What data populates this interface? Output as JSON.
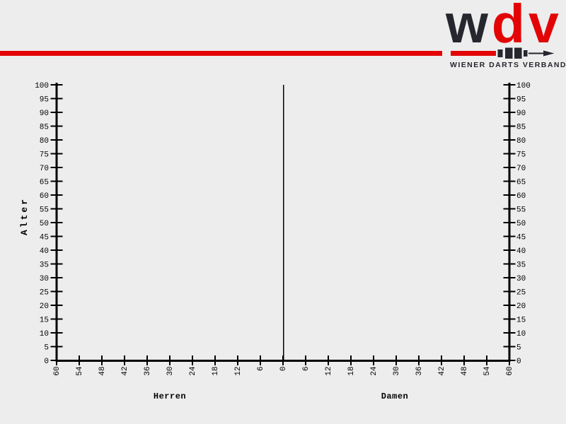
{
  "colors": {
    "red": "#e30505",
    "dark": "#26262e",
    "background": "#ededed",
    "chart": "#000000"
  },
  "header": {
    "logo": {
      "letters": [
        {
          "text": "w",
          "color": "#26262e"
        },
        {
          "text": "d",
          "color": "#e30505"
        },
        {
          "text": "v",
          "color": "#e30505"
        }
      ],
      "tagline": "WIENER DARTS VERBAND"
    }
  },
  "chart_data": {
    "type": "bar",
    "subtype": "population-pyramid",
    "title": "",
    "ylabel": "Alter",
    "grid": false,
    "y_axis": {
      "min": 0,
      "max": 100,
      "step": 5,
      "tick_labels": [
        0,
        5,
        10,
        15,
        20,
        25,
        30,
        35,
        40,
        45,
        50,
        55,
        60,
        65,
        70,
        75,
        80,
        85,
        90,
        95,
        100
      ]
    },
    "x_axis": {
      "max_each_side": 60,
      "step": 6,
      "left_tick_labels": [
        60,
        54,
        48,
        42,
        36,
        30,
        24,
        18,
        12,
        6
      ],
      "center_tick_label": 0,
      "right_tick_labels": [
        6,
        12,
        18,
        24,
        30,
        36,
        42,
        48,
        54,
        60
      ],
      "left_series_label": "Herren",
      "right_series_label": "Damen"
    },
    "series": [
      {
        "name": "Herren",
        "side": "left",
        "values_by_age": []
      },
      {
        "name": "Damen",
        "side": "right",
        "values_by_age": []
      }
    ]
  }
}
